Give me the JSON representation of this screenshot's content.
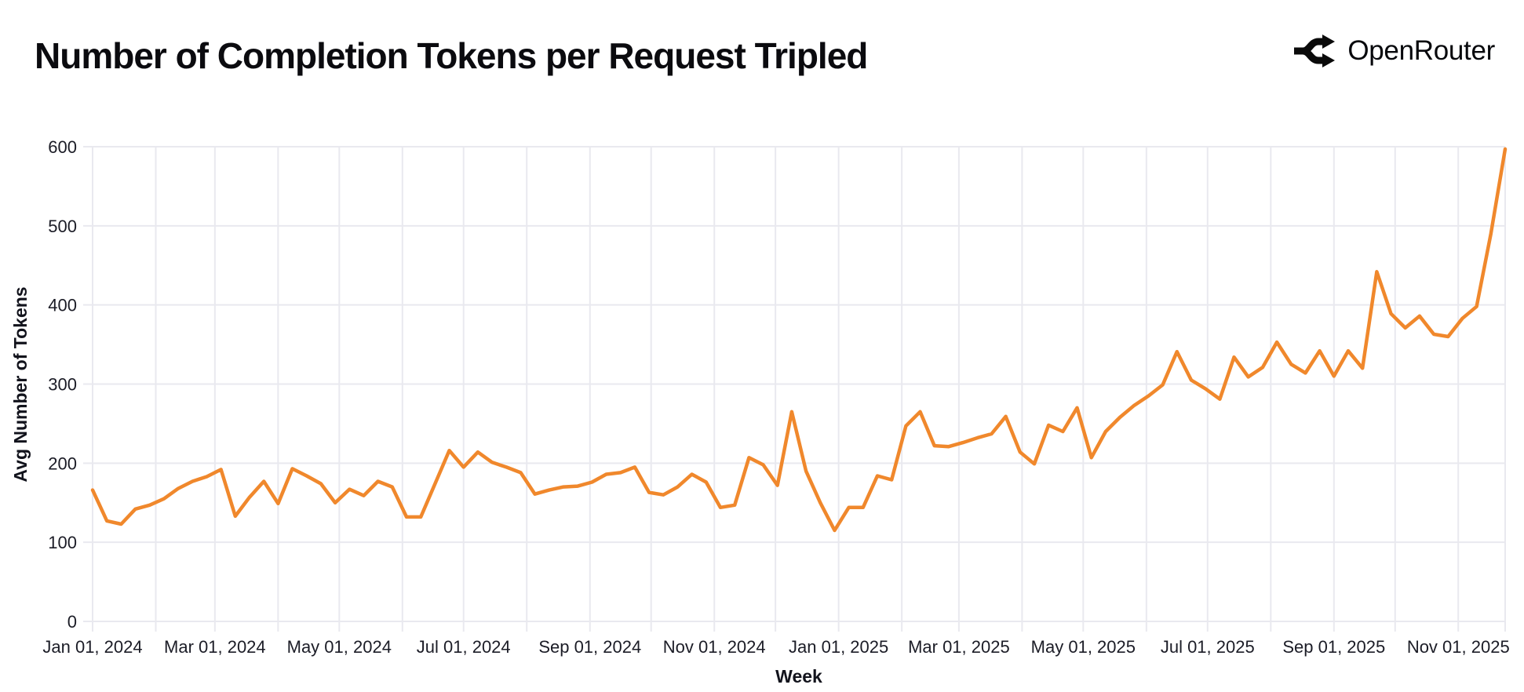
{
  "header": {
    "title": "Number of Completion Tokens per Request Tripled",
    "brand": "OpenRouter"
  },
  "chart_data": {
    "type": "line",
    "title": "Number of Completion Tokens per Request Tripled",
    "xlabel": "Week",
    "ylabel": "Avg Number of Tokens",
    "x_start_date": "2024-01-01",
    "x_interval_days": 7,
    "num_points": 100,
    "x_end_date": "2025-11-24",
    "values": [
      166,
      127,
      123,
      142,
      147,
      155,
      168,
      177,
      183,
      192,
      133,
      157,
      177,
      149,
      193,
      184,
      174,
      150,
      167,
      159,
      177,
      170,
      132,
      132,
      174,
      216,
      195,
      214,
      201,
      195,
      188,
      161,
      166,
      170,
      171,
      176,
      186,
      188,
      195,
      163,
      160,
      170,
      186,
      176,
      144,
      147,
      207,
      198,
      172,
      265,
      190,
      150,
      115,
      144,
      144,
      184,
      179,
      247,
      265,
      222,
      221,
      226,
      232,
      237,
      259,
      214,
      199,
      248,
      240,
      270,
      207,
      240,
      258,
      273,
      285,
      299,
      341,
      305,
      294,
      281,
      334,
      309,
      321,
      353,
      325,
      314,
      342,
      310,
      342,
      320,
      442,
      389,
      371,
      386,
      363,
      360,
      383,
      398,
      490,
      597
    ],
    "ylim": [
      0,
      600
    ],
    "y_ticks": [
      0,
      100,
      200,
      300,
      400,
      500,
      600
    ],
    "x_ticks": [
      {
        "label": "Jan 01, 2024",
        "date": "2024-01-01"
      },
      {
        "label": "Mar 01, 2024",
        "date": "2024-03-01"
      },
      {
        "label": "May 01, 2024",
        "date": "2024-05-01"
      },
      {
        "label": "Jul 01, 2024",
        "date": "2024-07-01"
      },
      {
        "label": "Sep 01, 2024",
        "date": "2024-09-01"
      },
      {
        "label": "Nov 01, 2024",
        "date": "2024-11-01"
      },
      {
        "label": "Jan 01, 2025",
        "date": "2025-01-01"
      },
      {
        "label": "Mar 01, 2025",
        "date": "2025-03-01"
      },
      {
        "label": "May 01, 2025",
        "date": "2025-05-01"
      },
      {
        "label": "Jul 01, 2025",
        "date": "2025-07-01"
      },
      {
        "label": "Sep 01, 2025",
        "date": "2025-09-01"
      },
      {
        "label": "Nov 01, 2025",
        "date": "2025-11-01"
      }
    ],
    "gridlines": {
      "horizontal_step": 100,
      "vertical": "monthly",
      "on": true
    },
    "legend": "none",
    "line_color": "#F0882C",
    "grid_color": "#E9E9EF",
    "tick_text_color": "#1b1c26",
    "background_color": "#ffffff",
    "logo_color": "#0a0a0a"
  }
}
